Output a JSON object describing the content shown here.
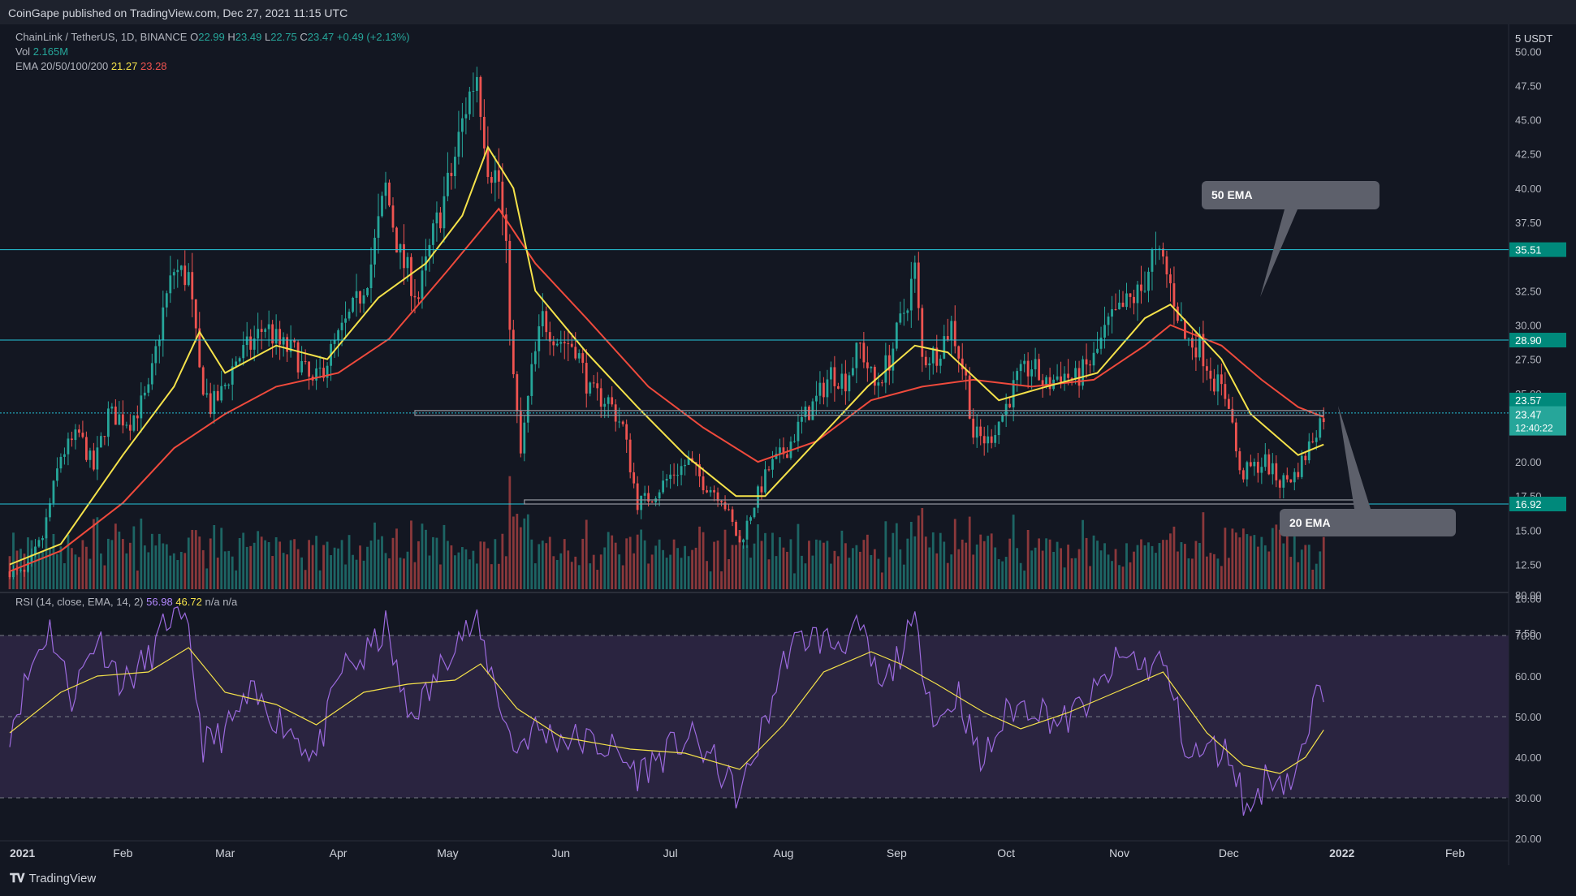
{
  "header": {
    "publisher": "CoinGape published on TradingView.com, Dec 27, 2021 11:15 UTC"
  },
  "legend": {
    "symbol": "ChainLink / TetherUS, 1D, BINANCE",
    "open_label": "O",
    "open": "22.99",
    "high_label": "H",
    "high": "23.49",
    "low_label": "L",
    "low": "22.75",
    "close_label": "C",
    "close": "23.47",
    "change": "+0.49 (+2.13%)",
    "vol_label": "Vol",
    "vol_value": "2.165M",
    "ema_label": "EMA 20/50/100/200",
    "ema20_value": "21.27",
    "ema50_value": "23.28"
  },
  "rsi_legend": {
    "label": "RSI (14, close, EMA, 14, 2)",
    "rsi_value": "56.98",
    "ema_value": "46.72",
    "na1": "n/a",
    "na2": "n/a"
  },
  "annotations": {
    "ema50_callout": "50 EMA",
    "ema20_callout": "20 EMA"
  },
  "price_axis": {
    "currency": "USDT",
    "ticks": [
      "50.00",
      "47.50",
      "45.00",
      "42.50",
      "40.00",
      "37.50",
      "32.50",
      "30.00",
      "27.50",
      "25.00",
      "20.00",
      "17.50",
      "15.00",
      "12.50",
      "10.00",
      "7.50"
    ]
  },
  "rsi_axis": {
    "ticks": [
      "80.00",
      "70.00",
      "60.00",
      "50.00",
      "40.00",
      "30.00",
      "20.00"
    ]
  },
  "time_axis": {
    "labels": [
      "2021",
      "Feb",
      "Mar",
      "Apr",
      "May",
      "Jun",
      "Jul",
      "Aug",
      "Sep",
      "Oct",
      "Nov",
      "Dec",
      "2022",
      "Feb"
    ]
  },
  "price_tags": {
    "r1": "35.51",
    "r2": "28.90",
    "r3": "23.57",
    "last": "23.47",
    "countdown": "12:40:22",
    "s1": "16.92"
  },
  "brand": {
    "name": "TradingView",
    "icon": "tradingview-logo-icon"
  },
  "colors": {
    "background": "#131722",
    "up": "#26a69a",
    "down": "#ef5350",
    "ema20": "#f5e24a",
    "ema50": "#ef4a3c",
    "level_line": "#26c6da",
    "rsi": "#9c6ade",
    "rsi_band": "#2a2440"
  },
  "chart_data": [
    {
      "type": "candlestick",
      "symbol": "ChainLink / TetherUS, 1D, BINANCE",
      "x_range": [
        "2021-01-01",
        "2022-02-15"
      ],
      "y_range": [
        5,
        51.5
      ],
      "close_path": [
        [
          "2021-01-01",
          12.0
        ],
        [
          "2021-01-05",
          11.8
        ],
        [
          "2021-01-10",
          14.5
        ],
        [
          "2021-01-15",
          20.5
        ],
        [
          "2021-01-20",
          22.0
        ],
        [
          "2021-01-24",
          19.5
        ],
        [
          "2021-01-28",
          23.5
        ],
        [
          "2021-02-03",
          23.0
        ],
        [
          "2021-02-08",
          25.0
        ],
        [
          "2021-02-12",
          31.0
        ],
        [
          "2021-02-15",
          34.0
        ],
        [
          "2021-02-19",
          33.5
        ],
        [
          "2021-02-22",
          26.5
        ],
        [
          "2021-02-25",
          24.0
        ],
        [
          "2021-02-28",
          25.0
        ],
        [
          "2021-03-04",
          27.5
        ],
        [
          "2021-03-08",
          28.5
        ],
        [
          "2021-03-12",
          30.0
        ],
        [
          "2021-03-16",
          28.5
        ],
        [
          "2021-03-20",
          28.0
        ],
        [
          "2021-03-25",
          25.5
        ],
        [
          "2021-03-29",
          27.5
        ],
        [
          "2021-04-02",
          29.5
        ],
        [
          "2021-04-06",
          31.5
        ],
        [
          "2021-04-10",
          34.5
        ],
        [
          "2021-04-14",
          40.0
        ],
        [
          "2021-04-18",
          35.0
        ],
        [
          "2021-04-23",
          32.0
        ],
        [
          "2021-04-27",
          36.5
        ],
        [
          "2021-05-02",
          41.0
        ],
        [
          "2021-05-06",
          46.0
        ],
        [
          "2021-05-09",
          48.5
        ],
        [
          "2021-05-12",
          42.0
        ],
        [
          "2021-05-15",
          40.5
        ],
        [
          "2021-05-17",
          35.0
        ],
        [
          "2021-05-19",
          26.0
        ],
        [
          "2021-05-21",
          20.5
        ],
        [
          "2021-05-24",
          26.5
        ],
        [
          "2021-05-27",
          30.5
        ],
        [
          "2021-05-31",
          29.0
        ],
        [
          "2021-06-05",
          28.5
        ],
        [
          "2021-06-09",
          25.0
        ],
        [
          "2021-06-14",
          24.5
        ],
        [
          "2021-06-18",
          22.5
        ],
        [
          "2021-06-22",
          17.0
        ],
        [
          "2021-06-26",
          17.5
        ],
        [
          "2021-07-01",
          19.0
        ],
        [
          "2021-07-06",
          20.0
        ],
        [
          "2021-07-10",
          18.5
        ],
        [
          "2021-07-15",
          17.5
        ],
        [
          "2021-07-20",
          14.0
        ],
        [
          "2021-07-24",
          17.0
        ],
        [
          "2021-07-28",
          19.5
        ],
        [
          "2021-08-02",
          21.0
        ],
        [
          "2021-08-06",
          23.0
        ],
        [
          "2021-08-10",
          24.5
        ],
        [
          "2021-08-14",
          26.5
        ],
        [
          "2021-08-18",
          26.0
        ],
        [
          "2021-08-22",
          28.5
        ],
        [
          "2021-08-26",
          25.5
        ],
        [
          "2021-08-30",
          27.5
        ],
        [
          "2021-09-03",
          31.0
        ],
        [
          "2021-09-06",
          34.0
        ],
        [
          "2021-09-08",
          27.5
        ],
        [
          "2021-09-12",
          28.0
        ],
        [
          "2021-09-16",
          30.0
        ],
        [
          "2021-09-20",
          26.0
        ],
        [
          "2021-09-22",
          22.0
        ],
        [
          "2021-09-26",
          21.5
        ],
        [
          "2021-09-30",
          23.5
        ],
        [
          "2021-10-04",
          26.0
        ],
        [
          "2021-10-08",
          27.0
        ],
        [
          "2021-10-12",
          25.5
        ],
        [
          "2021-10-16",
          26.5
        ],
        [
          "2021-10-20",
          26.0
        ],
        [
          "2021-10-25",
          27.5
        ],
        [
          "2021-10-29",
          30.0
        ],
        [
          "2021-11-03",
          31.5
        ],
        [
          "2021-11-07",
          32.5
        ],
        [
          "2021-11-10",
          35.0
        ],
        [
          "2021-11-13",
          34.5
        ],
        [
          "2021-11-16",
          32.0
        ],
        [
          "2021-11-19",
          29.0
        ],
        [
          "2021-11-23",
          28.5
        ],
        [
          "2021-11-27",
          26.0
        ],
        [
          "2021-12-01",
          24.5
        ],
        [
          "2021-12-04",
          19.0
        ],
        [
          "2021-12-07",
          19.5
        ],
        [
          "2021-12-11",
          20.0
        ],
        [
          "2021-12-15",
          18.5
        ],
        [
          "2021-12-19",
          19.0
        ],
        [
          "2021-12-22",
          20.5
        ],
        [
          "2021-12-25",
          22.5
        ],
        [
          "2021-12-27",
          23.47
        ]
      ],
      "ema20": [
        [
          "2021-01-01",
          12.5
        ],
        [
          "2021-01-15",
          14.0
        ],
        [
          "2021-02-01",
          20.5
        ],
        [
          "2021-02-15",
          25.5
        ],
        [
          "2021-02-22",
          29.5
        ],
        [
          "2021-03-01",
          26.5
        ],
        [
          "2021-03-15",
          28.5
        ],
        [
          "2021-03-29",
          27.5
        ],
        [
          "2021-04-12",
          32.0
        ],
        [
          "2021-04-25",
          34.5
        ],
        [
          "2021-05-05",
          38.0
        ],
        [
          "2021-05-12",
          43.0
        ],
        [
          "2021-05-19",
          40.0
        ],
        [
          "2021-05-25",
          32.5
        ],
        [
          "2021-06-08",
          28.0
        ],
        [
          "2021-06-22",
          24.0
        ],
        [
          "2021-07-05",
          20.5
        ],
        [
          "2021-07-19",
          17.5
        ],
        [
          "2021-07-27",
          17.5
        ],
        [
          "2021-08-10",
          21.5
        ],
        [
          "2021-08-24",
          25.5
        ],
        [
          "2021-09-06",
          28.5
        ],
        [
          "2021-09-15",
          28.0
        ],
        [
          "2021-09-29",
          24.5
        ],
        [
          "2021-10-12",
          25.5
        ],
        [
          "2021-10-26",
          26.5
        ],
        [
          "2021-11-08",
          30.5
        ],
        [
          "2021-11-15",
          31.5
        ],
        [
          "2021-11-29",
          27.5
        ],
        [
          "2021-12-07",
          23.5
        ],
        [
          "2021-12-20",
          20.5
        ],
        [
          "2021-12-27",
          21.27
        ]
      ],
      "ema50": [
        [
          "2021-01-01",
          12.0
        ],
        [
          "2021-01-15",
          13.5
        ],
        [
          "2021-02-01",
          17.0
        ],
        [
          "2021-02-15",
          21.0
        ],
        [
          "2021-03-01",
          23.5
        ],
        [
          "2021-03-15",
          25.5
        ],
        [
          "2021-04-01",
          26.5
        ],
        [
          "2021-04-15",
          29.0
        ],
        [
          "2021-05-01",
          34.0
        ],
        [
          "2021-05-15",
          38.5
        ],
        [
          "2021-05-25",
          34.5
        ],
        [
          "2021-06-08",
          30.5
        ],
        [
          "2021-06-25",
          25.5
        ],
        [
          "2021-07-10",
          22.5
        ],
        [
          "2021-07-25",
          20.0
        ],
        [
          "2021-08-10",
          21.5
        ],
        [
          "2021-08-25",
          24.5
        ],
        [
          "2021-09-08",
          25.5
        ],
        [
          "2021-09-22",
          26.0
        ],
        [
          "2021-10-08",
          25.5
        ],
        [
          "2021-10-25",
          26.0
        ],
        [
          "2021-11-08",
          28.5
        ],
        [
          "2021-11-15",
          30.0
        ],
        [
          "2021-11-29",
          28.5
        ],
        [
          "2021-12-10",
          26.0
        ],
        [
          "2021-12-20",
          24.0
        ],
        [
          "2021-12-27",
          23.28
        ]
      ],
      "horizontal_levels": [
        35.51,
        28.9,
        23.57,
        16.92
      ],
      "zones": [
        {
          "from": "2021-04-22",
          "to": "2021-12-27",
          "low": 23.4,
          "high": 23.75
        },
        {
          "from": "2021-05-22",
          "to": "2022-01-06",
          "low": 16.92,
          "high": 17.22
        }
      ]
    },
    {
      "type": "line",
      "name": "RSI (14, close, EMA, 14, 2)",
      "y_range": [
        20,
        80
      ],
      "band": [
        30,
        70
      ],
      "midline": 50,
      "rsi": [
        [
          "2021-01-01",
          47
        ],
        [
          "2021-01-08",
          65
        ],
        [
          "2021-01-12",
          72
        ],
        [
          "2021-01-18",
          55
        ],
        [
          "2021-01-25",
          70
        ],
        [
          "2021-02-01",
          58
        ],
        [
          "2021-02-08",
          64
        ],
        [
          "2021-02-14",
          75
        ],
        [
          "2021-02-19",
          70
        ],
        [
          "2021-02-23",
          43
        ],
        [
          "2021-03-01",
          46
        ],
        [
          "2021-03-08",
          55
        ],
        [
          "2021-03-15",
          50
        ],
        [
          "2021-03-22",
          44
        ],
        [
          "2021-03-26",
          40
        ],
        [
          "2021-04-02",
          62
        ],
        [
          "2021-04-08",
          64
        ],
        [
          "2021-04-14",
          72
        ],
        [
          "2021-04-20",
          50
        ],
        [
          "2021-04-26",
          56
        ],
        [
          "2021-05-03",
          70
        ],
        [
          "2021-05-09",
          72
        ],
        [
          "2021-05-14",
          58
        ],
        [
          "2021-05-19",
          42
        ],
        [
          "2021-05-25",
          47
        ],
        [
          "2021-05-31",
          45
        ],
        [
          "2021-06-08",
          44
        ],
        [
          "2021-06-15",
          42
        ],
        [
          "2021-06-22",
          36
        ],
        [
          "2021-06-28",
          40
        ],
        [
          "2021-07-06",
          45
        ],
        [
          "2021-07-12",
          40
        ],
        [
          "2021-07-20",
          30
        ],
        [
          "2021-07-26",
          46
        ],
        [
          "2021-08-02",
          66
        ],
        [
          "2021-08-08",
          70
        ],
        [
          "2021-08-15",
          68
        ],
        [
          "2021-08-22",
          71
        ],
        [
          "2021-08-28",
          56
        ],
        [
          "2021-09-03",
          68
        ],
        [
          "2021-09-06",
          72
        ],
        [
          "2021-09-12",
          48
        ],
        [
          "2021-09-18",
          56
        ],
        [
          "2021-09-24",
          38
        ],
        [
          "2021-10-02",
          52
        ],
        [
          "2021-10-09",
          53
        ],
        [
          "2021-10-16",
          48
        ],
        [
          "2021-10-25",
          55
        ],
        [
          "2021-10-31",
          63
        ],
        [
          "2021-11-04",
          65
        ],
        [
          "2021-11-08",
          62
        ],
        [
          "2021-11-12",
          64
        ],
        [
          "2021-11-15",
          58
        ],
        [
          "2021-11-20",
          40
        ],
        [
          "2021-11-27",
          42
        ],
        [
          "2021-12-02",
          40
        ],
        [
          "2021-12-06",
          26
        ],
        [
          "2021-12-12",
          36
        ],
        [
          "2021-12-18",
          34
        ],
        [
          "2021-12-22",
          42
        ],
        [
          "2021-12-24",
          52
        ],
        [
          "2021-12-27",
          56.98
        ]
      ],
      "rsi_ema": [
        [
          "2021-01-01",
          46
        ],
        [
          "2021-01-15",
          56
        ],
        [
          "2021-01-25",
          60
        ],
        [
          "2021-02-08",
          61
        ],
        [
          "2021-02-19",
          67
        ],
        [
          "2021-03-01",
          56
        ],
        [
          "2021-03-15",
          53
        ],
        [
          "2021-03-26",
          48
        ],
        [
          "2021-04-08",
          56
        ],
        [
          "2021-04-20",
          58
        ],
        [
          "2021-05-03",
          59
        ],
        [
          "2021-05-10",
          63
        ],
        [
          "2021-05-20",
          52
        ],
        [
          "2021-06-01",
          45
        ],
        [
          "2021-06-20",
          42
        ],
        [
          "2021-07-05",
          41
        ],
        [
          "2021-07-20",
          37
        ],
        [
          "2021-08-01",
          48
        ],
        [
          "2021-08-12",
          61
        ],
        [
          "2021-08-25",
          66
        ],
        [
          "2021-09-02",
          63
        ],
        [
          "2021-09-12",
          58
        ],
        [
          "2021-09-25",
          51
        ],
        [
          "2021-10-05",
          47
        ],
        [
          "2021-10-18",
          51
        ],
        [
          "2021-10-31",
          56
        ],
        [
          "2021-11-13",
          61
        ],
        [
          "2021-11-25",
          46
        ],
        [
          "2021-12-05",
          38
        ],
        [
          "2021-12-15",
          36
        ],
        [
          "2021-12-22",
          40
        ],
        [
          "2021-12-27",
          46.72
        ]
      ]
    }
  ]
}
